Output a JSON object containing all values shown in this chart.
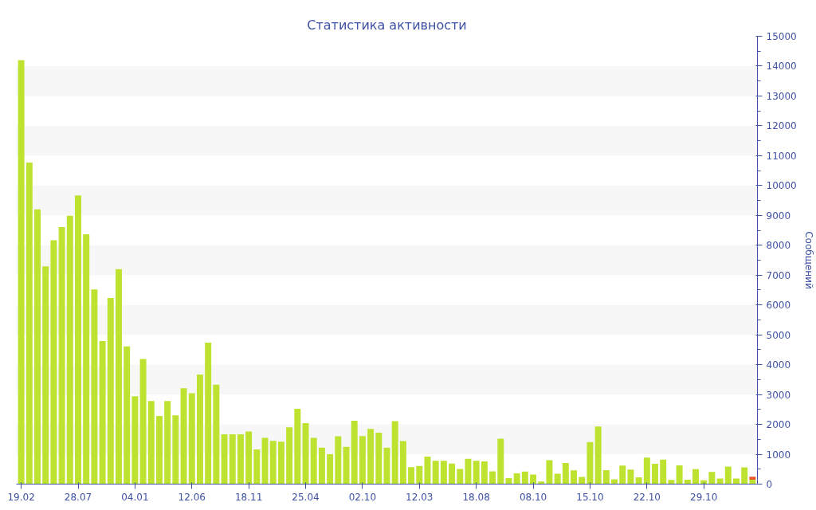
{
  "chart_data": {
    "type": "bar",
    "title": "Статистика активности",
    "y2label": "Сообщений",
    "stacked": true,
    "categories": [
      "19.02",
      null,
      null,
      null,
      null,
      null,
      null,
      "28.07",
      null,
      null,
      null,
      null,
      null,
      null,
      "04.01",
      null,
      null,
      null,
      null,
      null,
      null,
      "12.06",
      null,
      null,
      null,
      null,
      null,
      null,
      "18.11",
      null,
      null,
      null,
      null,
      null,
      null,
      "25.04",
      null,
      null,
      null,
      null,
      null,
      null,
      "02.10",
      null,
      null,
      null,
      null,
      null,
      null,
      "12.03",
      null,
      null,
      null,
      null,
      null,
      null,
      "18.08",
      null,
      null,
      null,
      null,
      null,
      null,
      "08.10",
      null,
      null,
      null,
      null,
      null,
      null,
      "15.10",
      null,
      null,
      null,
      null,
      null,
      null,
      "22.10",
      null,
      null,
      null,
      null,
      null,
      null,
      "29.10",
      null,
      null,
      null,
      null,
      null,
      null
    ],
    "series": [
      {
        "color": "#bde22f",
        "axis": "y2",
        "values": [
          14200,
          10770,
          9200,
          7290,
          8170,
          8610,
          8990,
          9670,
          8370,
          6520,
          4790,
          6230,
          7200,
          4610,
          2940,
          4190,
          2780,
          2280,
          2780,
          2300,
          3210,
          3040,
          3670,
          4740,
          3330,
          1670,
          1670,
          1670,
          1760,
          1160,
          1550,
          1450,
          1420,
          1900,
          2520,
          2040,
          1550,
          1220,
          1000,
          1600,
          1250,
          2120,
          1610,
          1850,
          1720,
          1220,
          2110,
          1440,
          570,
          610,
          920,
          780,
          780,
          690,
          510,
          850,
          780,
          760,
          430,
          1520,
          200,
          360,
          420,
          320,
          90,
          800,
          350,
          710,
          460,
          240,
          1410,
          1930,
          470,
          160,
          620,
          490,
          230,
          890,
          680,
          820,
          140,
          630,
          150,
          500,
          130,
          410,
          190,
          590,
          190,
          560,
          150
        ]
      },
      {
        "color": "#e8562a",
        "axis": "y2",
        "values": [
          null,
          null,
          null,
          null,
          null,
          null,
          null,
          null,
          null,
          null,
          null,
          null,
          null,
          null,
          null,
          null,
          null,
          null,
          null,
          null,
          null,
          null,
          null,
          null,
          null,
          null,
          null,
          null,
          null,
          null,
          null,
          null,
          null,
          null,
          null,
          null,
          null,
          null,
          null,
          null,
          null,
          null,
          null,
          null,
          null,
          null,
          null,
          null,
          null,
          null,
          null,
          null,
          null,
          null,
          null,
          null,
          null,
          null,
          null,
          null,
          null,
          null,
          null,
          null,
          null,
          null,
          null,
          null,
          null,
          null,
          null,
          null,
          null,
          null,
          null,
          null,
          null,
          null,
          null,
          null,
          null,
          null,
          null,
          null,
          null,
          null,
          null,
          null,
          null,
          null,
          100
        ]
      }
    ],
    "y2lim": [
      0,
      15000
    ],
    "y2ticks": [
      0,
      1000,
      2000,
      3000,
      4000,
      5000,
      6000,
      7000,
      8000,
      9000,
      10000,
      11000,
      12000,
      13000,
      14000,
      15000
    ],
    "grid": false
  }
}
